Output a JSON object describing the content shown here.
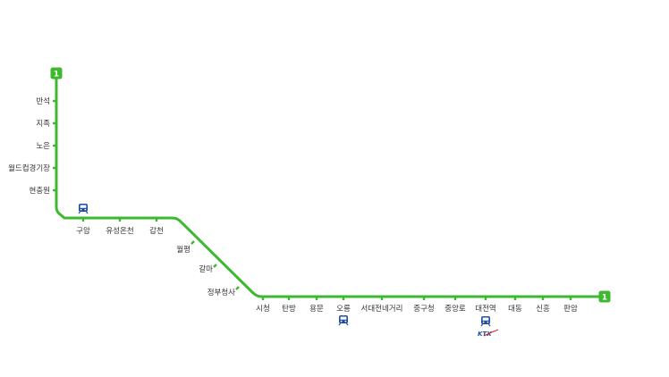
{
  "line": {
    "number": "1",
    "color": "#3cb92f",
    "badge_color": "#3cb92f"
  },
  "stations": [
    {
      "id": "banseok",
      "name": "반석"
    },
    {
      "id": "jijok",
      "name": "지족"
    },
    {
      "id": "noeun",
      "name": "노은"
    },
    {
      "id": "worldcup-stadium",
      "name": "월드컵경기장"
    },
    {
      "id": "hyeonchungwon",
      "name": "현충원"
    },
    {
      "id": "guam",
      "name": "구암",
      "transfer": "train-icon"
    },
    {
      "id": "yuseong-oncheon",
      "name": "유성온천"
    },
    {
      "id": "gapcheon",
      "name": "갑천"
    },
    {
      "id": "wolpyeong",
      "name": "월평"
    },
    {
      "id": "galma",
      "name": "갈마"
    },
    {
      "id": "government-complex",
      "name": "정부청사"
    },
    {
      "id": "city-hall",
      "name": "시청"
    },
    {
      "id": "tanbang",
      "name": "탄방"
    },
    {
      "id": "yongmun",
      "name": "용문"
    },
    {
      "id": "oryong",
      "name": "오룡",
      "transfer": "train-icon"
    },
    {
      "id": "seodaejeon-negeori",
      "name": "서대전네거리"
    },
    {
      "id": "junggu-office",
      "name": "중구청"
    },
    {
      "id": "jungangno",
      "name": "중앙로"
    },
    {
      "id": "daejeon",
      "name": "대전역",
      "transfer": "train-icon",
      "extra": "KTX"
    },
    {
      "id": "daedong",
      "name": "대동"
    },
    {
      "id": "sinheung",
      "name": "신흥"
    },
    {
      "id": "panam",
      "name": "판암"
    }
  ],
  "icons": {
    "transfer": "train-icon",
    "ktx": "ktx-logo",
    "terminus": "line-badge"
  },
  "colors": {
    "train_icon": "#1f4ea1",
    "ktx_swoosh": "#d9262c",
    "label": "#333333"
  }
}
